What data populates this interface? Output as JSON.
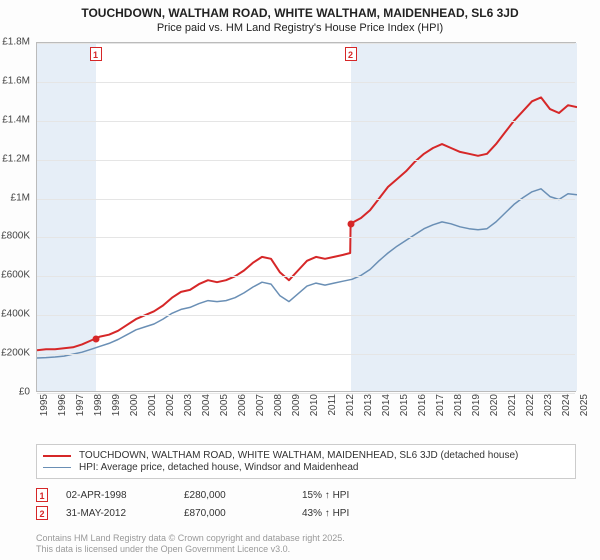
{
  "title": {
    "line1": "TOUCHDOWN, WALTHAM ROAD, WHITE WALTHAM, MAIDENHEAD, SL6 3JD",
    "line2": "Price paid vs. HM Land Registry's House Price Index (HPI)"
  },
  "chart": {
    "type": "line",
    "background_color": "#ffffff",
    "border_color": "#bbbbbb",
    "grid_color": "#e5e5e5",
    "highlight_color": "#e6eef7",
    "ylim": [
      0,
      1800000
    ],
    "ytick_step": 200000,
    "ytick_labels": [
      "£0",
      "£200K",
      "£400K",
      "£600K",
      "£800K",
      "£1M",
      "£1.2M",
      "£1.4M",
      "£1.6M",
      "£1.8M"
    ],
    "x_start_year": 1995,
    "x_end_year": 2025,
    "xtick_labels": [
      "1995",
      "1996",
      "1997",
      "1998",
      "1999",
      "2000",
      "2001",
      "2002",
      "2003",
      "2004",
      "2005",
      "2006",
      "2007",
      "2008",
      "2009",
      "2010",
      "2011",
      "2012",
      "2013",
      "2014",
      "2015",
      "2016",
      "2017",
      "2018",
      "2019",
      "2020",
      "2021",
      "2022",
      "2023",
      "2024",
      "2025"
    ],
    "series": [
      {
        "name": "TOUCHDOWN, WALTHAM ROAD, WHITE WALTHAM, MAIDENHEAD, SL6 3JD (detached house)",
        "color": "#d62728",
        "line_width": 2,
        "data": [
          [
            1995,
            220000
          ],
          [
            1995.5,
            225000
          ],
          [
            1996,
            225000
          ],
          [
            1996.5,
            230000
          ],
          [
            1997,
            235000
          ],
          [
            1997.5,
            250000
          ],
          [
            1998,
            270000
          ],
          [
            1998.25,
            280000
          ],
          [
            1998.5,
            290000
          ],
          [
            1999,
            300000
          ],
          [
            1999.5,
            320000
          ],
          [
            2000,
            350000
          ],
          [
            2000.5,
            380000
          ],
          [
            2001,
            400000
          ],
          [
            2001.5,
            420000
          ],
          [
            2002,
            450000
          ],
          [
            2002.5,
            490000
          ],
          [
            2003,
            520000
          ],
          [
            2003.5,
            530000
          ],
          [
            2004,
            560000
          ],
          [
            2004.5,
            580000
          ],
          [
            2005,
            570000
          ],
          [
            2005.5,
            580000
          ],
          [
            2006,
            600000
          ],
          [
            2006.5,
            630000
          ],
          [
            2007,
            670000
          ],
          [
            2007.5,
            700000
          ],
          [
            2008,
            690000
          ],
          [
            2008.5,
            620000
          ],
          [
            2009,
            580000
          ],
          [
            2009.5,
            630000
          ],
          [
            2010,
            680000
          ],
          [
            2010.5,
            700000
          ],
          [
            2011,
            690000
          ],
          [
            2011.5,
            700000
          ],
          [
            2012,
            710000
          ],
          [
            2012.4,
            720000
          ],
          [
            2012.42,
            870000
          ],
          [
            2012.5,
            875000
          ],
          [
            2013,
            900000
          ],
          [
            2013.5,
            940000
          ],
          [
            2014,
            1000000
          ],
          [
            2014.5,
            1060000
          ],
          [
            2015,
            1100000
          ],
          [
            2015.5,
            1140000
          ],
          [
            2016,
            1190000
          ],
          [
            2016.5,
            1230000
          ],
          [
            2017,
            1260000
          ],
          [
            2017.5,
            1280000
          ],
          [
            2018,
            1260000
          ],
          [
            2018.5,
            1240000
          ],
          [
            2019,
            1230000
          ],
          [
            2019.5,
            1220000
          ],
          [
            2020,
            1230000
          ],
          [
            2020.5,
            1280000
          ],
          [
            2021,
            1340000
          ],
          [
            2021.5,
            1400000
          ],
          [
            2022,
            1450000
          ],
          [
            2022.5,
            1500000
          ],
          [
            2023,
            1520000
          ],
          [
            2023.5,
            1460000
          ],
          [
            2024,
            1440000
          ],
          [
            2024.5,
            1480000
          ],
          [
            2025,
            1470000
          ]
        ]
      },
      {
        "name": "HPI: Average price, detached house, Windsor and Maidenhead",
        "color": "#6a8fb5",
        "line_width": 1.5,
        "data": [
          [
            1995,
            180000
          ],
          [
            1995.5,
            182000
          ],
          [
            1996,
            185000
          ],
          [
            1996.5,
            190000
          ],
          [
            1997,
            200000
          ],
          [
            1997.5,
            210000
          ],
          [
            1998,
            225000
          ],
          [
            1998.5,
            240000
          ],
          [
            1999,
            255000
          ],
          [
            1999.5,
            275000
          ],
          [
            2000,
            300000
          ],
          [
            2000.5,
            325000
          ],
          [
            2001,
            340000
          ],
          [
            2001.5,
            355000
          ],
          [
            2002,
            380000
          ],
          [
            2002.5,
            410000
          ],
          [
            2003,
            430000
          ],
          [
            2003.5,
            440000
          ],
          [
            2004,
            460000
          ],
          [
            2004.5,
            475000
          ],
          [
            2005,
            470000
          ],
          [
            2005.5,
            475000
          ],
          [
            2006,
            490000
          ],
          [
            2006.5,
            515000
          ],
          [
            2007,
            545000
          ],
          [
            2007.5,
            570000
          ],
          [
            2008,
            560000
          ],
          [
            2008.5,
            500000
          ],
          [
            2009,
            470000
          ],
          [
            2009.5,
            510000
          ],
          [
            2010,
            550000
          ],
          [
            2010.5,
            565000
          ],
          [
            2011,
            555000
          ],
          [
            2011.5,
            565000
          ],
          [
            2012,
            575000
          ],
          [
            2012.5,
            585000
          ],
          [
            2013,
            605000
          ],
          [
            2013.5,
            635000
          ],
          [
            2014,
            680000
          ],
          [
            2014.5,
            720000
          ],
          [
            2015,
            755000
          ],
          [
            2015.5,
            785000
          ],
          [
            2016,
            815000
          ],
          [
            2016.5,
            845000
          ],
          [
            2017,
            865000
          ],
          [
            2017.5,
            880000
          ],
          [
            2018,
            870000
          ],
          [
            2018.5,
            855000
          ],
          [
            2019,
            845000
          ],
          [
            2019.5,
            840000
          ],
          [
            2020,
            845000
          ],
          [
            2020.5,
            880000
          ],
          [
            2021,
            925000
          ],
          [
            2021.5,
            970000
          ],
          [
            2022,
            1005000
          ],
          [
            2022.5,
            1035000
          ],
          [
            2023,
            1050000
          ],
          [
            2023.5,
            1010000
          ],
          [
            2024,
            995000
          ],
          [
            2024.5,
            1025000
          ],
          [
            2025,
            1020000
          ]
        ]
      }
    ],
    "markers": [
      {
        "id": "1",
        "year": 1998.25,
        "value": 280000
      },
      {
        "id": "2",
        "year": 2012.42,
        "value": 870000
      }
    ]
  },
  "legend": {
    "rows": [
      {
        "color": "#d62728",
        "width": 2,
        "label": "TOUCHDOWN, WALTHAM ROAD, WHITE WALTHAM, MAIDENHEAD, SL6 3JD (detached house)"
      },
      {
        "color": "#6a8fb5",
        "width": 1.5,
        "label": "HPI: Average price, detached house, Windsor and Maidenhead"
      }
    ]
  },
  "sales": [
    {
      "id": "1",
      "date": "02-APR-1998",
      "price": "£280,000",
      "pct": "15% ↑ HPI"
    },
    {
      "id": "2",
      "date": "31-MAY-2012",
      "price": "£870,000",
      "pct": "43% ↑ HPI"
    }
  ],
  "footer": {
    "line1": "Contains HM Land Registry data © Crown copyright and database right 2025.",
    "line2": "This data is licensed under the Open Government Licence v3.0."
  }
}
